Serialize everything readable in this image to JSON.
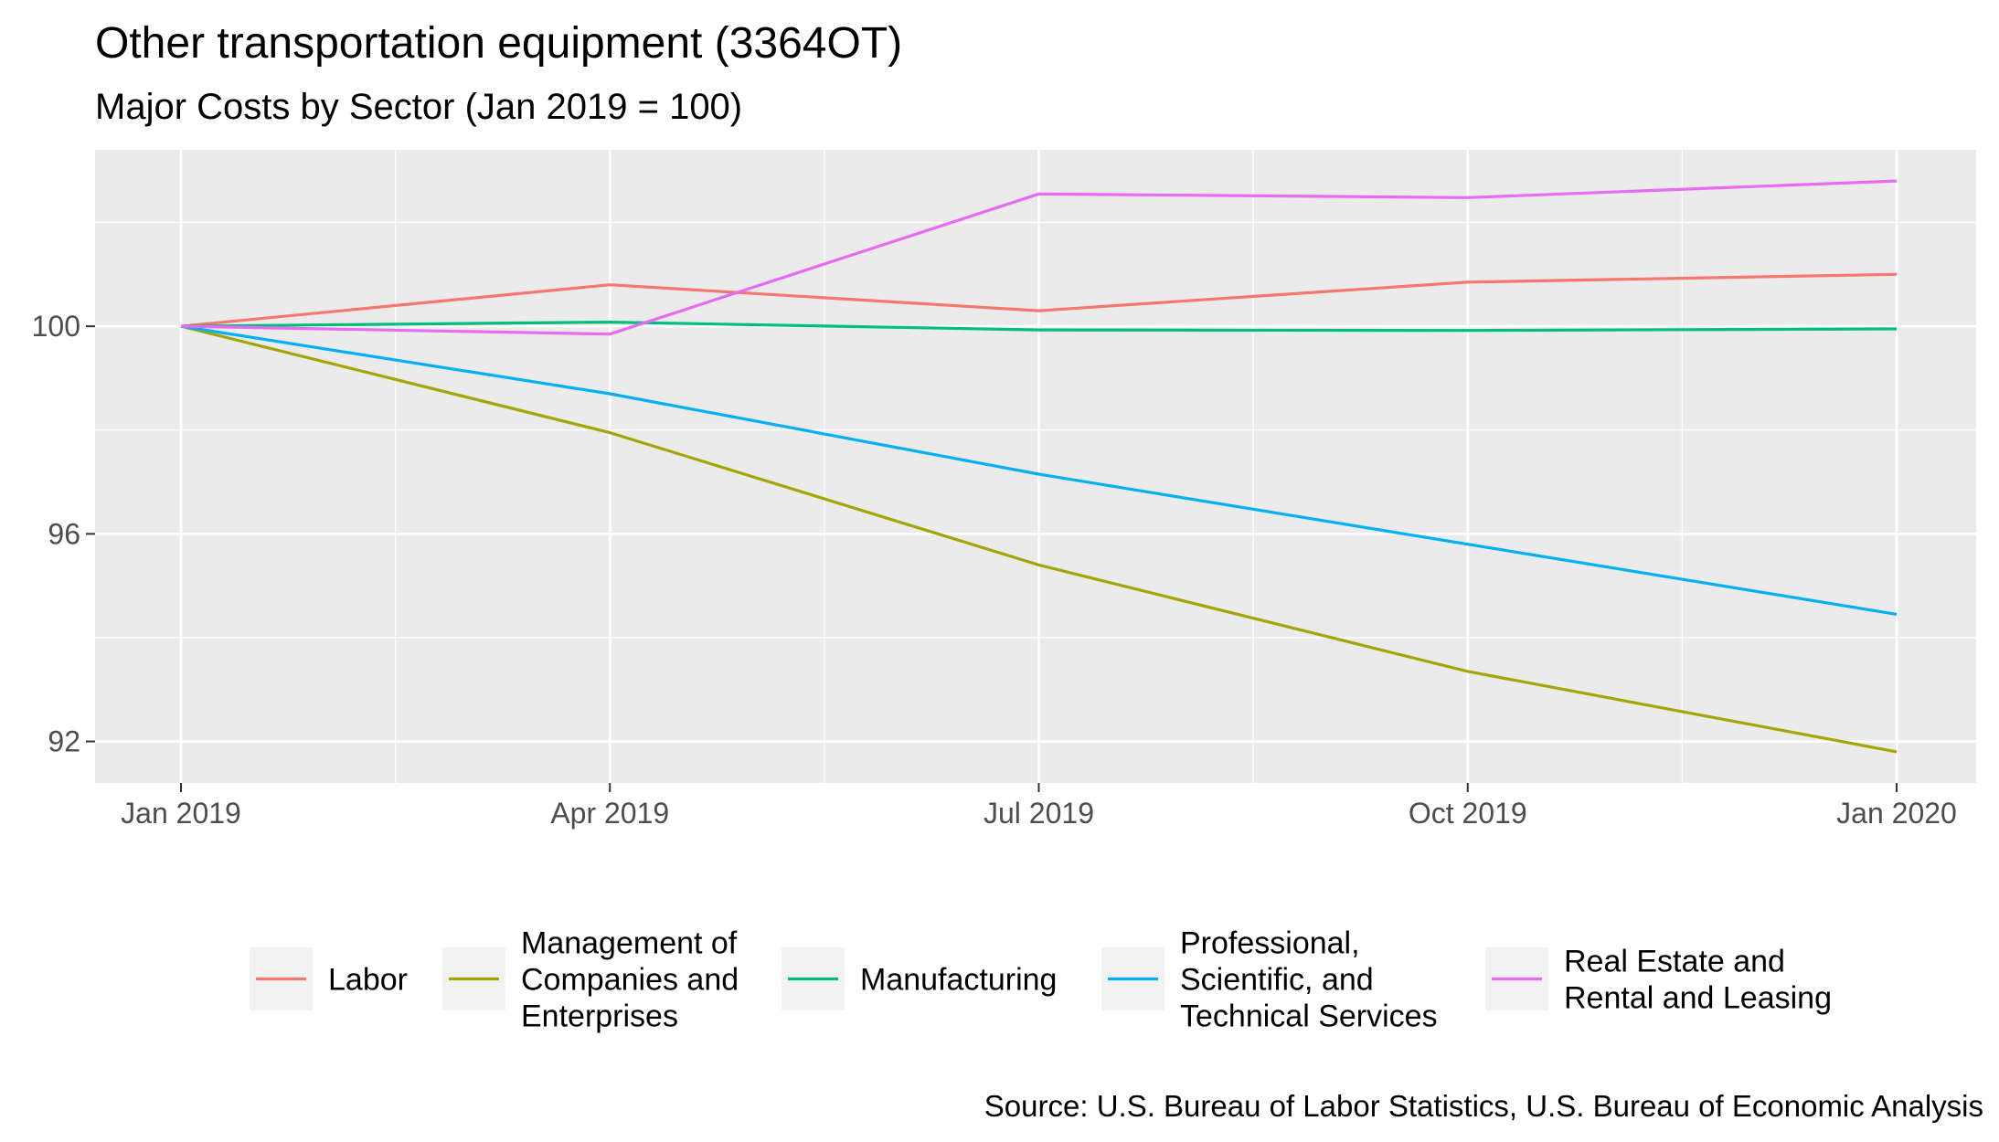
{
  "chart_data": {
    "type": "line",
    "title": "Other transportation equipment (3364OT)",
    "subtitle": "Major Costs by Sector (Jan 2019 = 100)",
    "caption": "Source: U.S. Bureau of Labor Statistics, U.S. Bureau of Economic Analysis",
    "xlabel": "",
    "ylabel": "",
    "x": [
      "Jan 2019",
      "Apr 2019",
      "Jul 2019",
      "Oct 2019",
      "Jan 2020"
    ],
    "x_ticks": [
      "Jan 2019",
      "Apr 2019",
      "Jul 2019",
      "Oct 2019",
      "Jan 2020"
    ],
    "y_ticks": [
      92,
      96,
      100
    ],
    "ylim": [
      91.2,
      103.4
    ],
    "grid": true,
    "legend_position": "bottom",
    "series": [
      {
        "name": "Labor",
        "color": "#F8766D",
        "values": [
          100.0,
          100.8,
          100.3,
          100.85,
          101.0
        ],
        "legend_lines": [
          "Labor"
        ]
      },
      {
        "name": "Management of Companies and Enterprises",
        "color": "#A3A500",
        "values": [
          100.0,
          97.95,
          95.4,
          93.35,
          91.8
        ],
        "legend_lines": [
          "Management of",
          "Companies and",
          "Enterprises"
        ]
      },
      {
        "name": "Manufacturing",
        "color": "#00BF7D",
        "values": [
          100.0,
          100.08,
          99.93,
          99.92,
          99.95
        ],
        "legend_lines": [
          "Manufacturing"
        ]
      },
      {
        "name": "Professional, Scientific, and Technical Services",
        "color": "#00B0F6",
        "values": [
          100.0,
          98.7,
          97.15,
          95.8,
          94.45
        ],
        "legend_lines": [
          "Professional,",
          "Scientific, and",
          "Technical Services"
        ]
      },
      {
        "name": "Real Estate and Rental and Leasing",
        "color": "#E76BF3",
        "values": [
          100.0,
          99.85,
          102.55,
          102.48,
          102.8
        ],
        "legend_lines": [
          "Real Estate and",
          "Rental and Leasing"
        ]
      }
    ]
  }
}
